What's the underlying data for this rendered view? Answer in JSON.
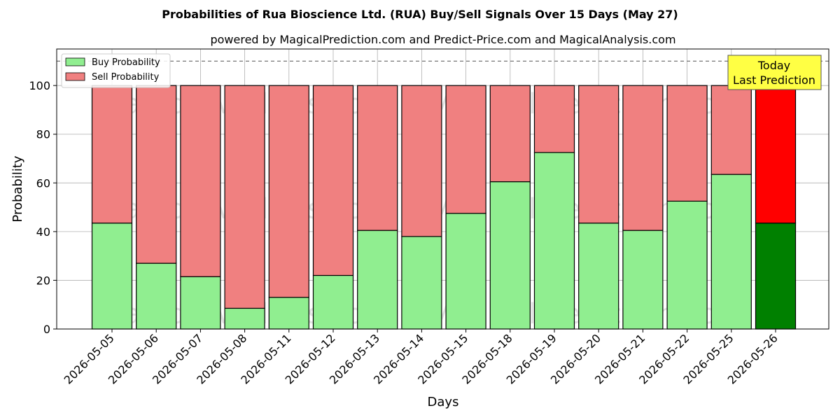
{
  "chart_data": {
    "type": "bar",
    "stacked": true,
    "title": "Probabilities of Rua Bioscience Ltd. (RUA) Buy/Sell Signals Over 15 Days (May 27)",
    "subtitle": "powered by MagicalPrediction.com and Predict-Price.com and MagicalAnalysis.com",
    "xlabel": "Days",
    "ylabel": "Probability",
    "ylim": [
      0,
      115
    ],
    "yticks": [
      0,
      20,
      40,
      60,
      80,
      100
    ],
    "grid": true,
    "legend_position": "top-left",
    "reference_line": 110,
    "categories": [
      "2026-05-05",
      "2026-05-06",
      "2026-05-07",
      "2026-05-08",
      "2026-05-11",
      "2026-05-12",
      "2026-05-13",
      "2026-05-14",
      "2026-05-15",
      "2026-05-18",
      "2026-05-19",
      "2026-05-20",
      "2026-05-21",
      "2026-05-22",
      "2026-05-25",
      "2026-05-26"
    ],
    "series": [
      {
        "name": "Buy Probability",
        "color": "#90ee90",
        "highlight_color": "#008000",
        "values": [
          43.5,
          27,
          21.5,
          8.5,
          13,
          22,
          40.5,
          38,
          47.5,
          60.5,
          72.5,
          43.5,
          40.5,
          52.5,
          63.5,
          43.5
        ]
      },
      {
        "name": "Sell Probability",
        "color": "#f08080",
        "highlight_color": "#ff0000",
        "values": [
          56.5,
          73,
          78.5,
          91.5,
          87,
          78,
          59.5,
          62,
          52.5,
          39.5,
          27.5,
          56.5,
          59.5,
          47.5,
          36.5,
          56.5
        ]
      }
    ],
    "highlight_index": 15,
    "annotation": {
      "line1": "Today",
      "line2": "Last Prediction",
      "bg_color": "#ffff44"
    },
    "watermarks": [
      "MagicalAnalysis.com",
      "MagicalPrediction.com"
    ]
  }
}
